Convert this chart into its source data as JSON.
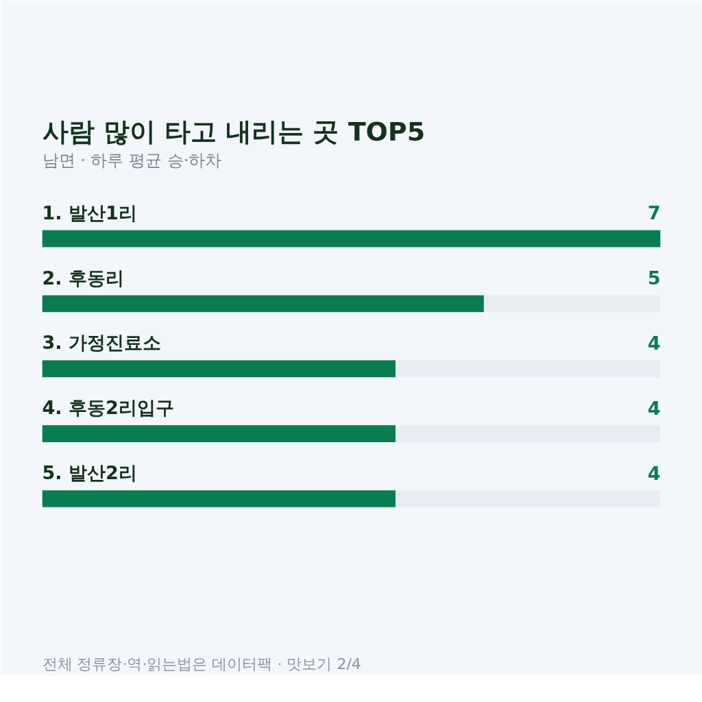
{
  "chart_data": {
    "type": "bar",
    "orientation": "horizontal",
    "title": "사람 많이 타고 내리는 곳 TOP5",
    "subtitle": "남면 · 하루 평균 승·하차",
    "categories": [
      "1. 발산1리",
      "2. 후동리",
      "3. 가정진료소",
      "4. 후동2리입구",
      "5. 발산2리"
    ],
    "values": [
      7,
      5,
      4,
      4,
      4
    ],
    "color": "#0a7c52",
    "xlim": [
      0,
      7
    ],
    "data_labels": true,
    "tick_labels": false,
    "annotations": [
      "전체 정류장·역·읽는법은 데이터팩 · 맛보기 2/4"
    ]
  }
}
